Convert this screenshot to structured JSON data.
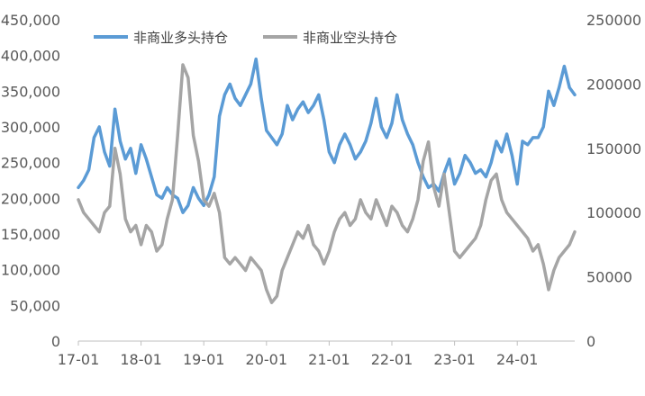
{
  "chart_data": {
    "type": "line",
    "title": "",
    "legend_position": "top-left",
    "grid": false,
    "x": {
      "ticks": [
        "17-01",
        "18-01",
        "19-01",
        "20-01",
        "21-01",
        "22-01",
        "23-01",
        "24-01"
      ],
      "range": [
        "2017-01",
        "2024-12"
      ]
    },
    "y_left": {
      "ticks": [
        "0",
        "50,000",
        "100,000",
        "150,000",
        "200,000",
        "250,000",
        "300,000",
        "350,000",
        "400,000",
        "450,000"
      ],
      "range": [
        0,
        450000
      ]
    },
    "y_right": {
      "ticks": [
        "0",
        "50000",
        "100000",
        "150000",
        "200000",
        "250000"
      ],
      "range": [
        0,
        250000
      ]
    },
    "series": [
      {
        "name": "非商业多头持仓",
        "axis": "left",
        "color": "#5B9BD5",
        "points": [
          [
            "2017-01",
            215000
          ],
          [
            "2017-02",
            225000
          ],
          [
            "2017-03",
            240000
          ],
          [
            "2017-04",
            285000
          ],
          [
            "2017-05",
            300000
          ],
          [
            "2017-06",
            265000
          ],
          [
            "2017-07",
            245000
          ],
          [
            "2017-08",
            325000
          ],
          [
            "2017-09",
            280000
          ],
          [
            "2017-10",
            255000
          ],
          [
            "2017-11",
            270000
          ],
          [
            "2017-12",
            235000
          ],
          [
            "2018-01",
            275000
          ],
          [
            "2018-02",
            255000
          ],
          [
            "2018-03",
            230000
          ],
          [
            "2018-04",
            205000
          ],
          [
            "2018-05",
            200000
          ],
          [
            "2018-06",
            215000
          ],
          [
            "2018-07",
            205000
          ],
          [
            "2018-08",
            200000
          ],
          [
            "2018-09",
            180000
          ],
          [
            "2018-10",
            190000
          ],
          [
            "2018-11",
            215000
          ],
          [
            "2018-12",
            200000
          ],
          [
            "2019-01",
            190000
          ],
          [
            "2019-02",
            205000
          ],
          [
            "2019-03",
            230000
          ],
          [
            "2019-04",
            315000
          ],
          [
            "2019-05",
            345000
          ],
          [
            "2019-06",
            360000
          ],
          [
            "2019-07",
            340000
          ],
          [
            "2019-08",
            330000
          ],
          [
            "2019-09",
            345000
          ],
          [
            "2019-10",
            360000
          ],
          [
            "2019-11",
            395000
          ],
          [
            "2019-12",
            340000
          ],
          [
            "2020-01",
            295000
          ],
          [
            "2020-02",
            285000
          ],
          [
            "2020-03",
            275000
          ],
          [
            "2020-04",
            290000
          ],
          [
            "2020-05",
            330000
          ],
          [
            "2020-06",
            310000
          ],
          [
            "2020-07",
            325000
          ],
          [
            "2020-08",
            335000
          ],
          [
            "2020-09",
            320000
          ],
          [
            "2020-10",
            330000
          ],
          [
            "2020-11",
            345000
          ],
          [
            "2020-12",
            310000
          ],
          [
            "2021-01",
            265000
          ],
          [
            "2021-02",
            250000
          ],
          [
            "2021-03",
            275000
          ],
          [
            "2021-04",
            290000
          ],
          [
            "2021-05",
            275000
          ],
          [
            "2021-06",
            255000
          ],
          [
            "2021-07",
            265000
          ],
          [
            "2021-08",
            280000
          ],
          [
            "2021-09",
            305000
          ],
          [
            "2021-10",
            340000
          ],
          [
            "2021-11",
            300000
          ],
          [
            "2021-12",
            285000
          ],
          [
            "2022-01",
            305000
          ],
          [
            "2022-02",
            345000
          ],
          [
            "2022-03",
            310000
          ],
          [
            "2022-04",
            290000
          ],
          [
            "2022-05",
            275000
          ],
          [
            "2022-06",
            250000
          ],
          [
            "2022-07",
            230000
          ],
          [
            "2022-08",
            215000
          ],
          [
            "2022-09",
            220000
          ],
          [
            "2022-10",
            210000
          ],
          [
            "2022-11",
            235000
          ],
          [
            "2022-12",
            255000
          ],
          [
            "2023-01",
            220000
          ],
          [
            "2023-02",
            235000
          ],
          [
            "2023-03",
            260000
          ],
          [
            "2023-04",
            250000
          ],
          [
            "2023-05",
            235000
          ],
          [
            "2023-06",
            240000
          ],
          [
            "2023-07",
            230000
          ],
          [
            "2023-08",
            250000
          ],
          [
            "2023-09",
            280000
          ],
          [
            "2023-10",
            265000
          ],
          [
            "2023-11",
            290000
          ],
          [
            "2023-12",
            260000
          ],
          [
            "2024-01",
            220000
          ],
          [
            "2024-02",
            280000
          ],
          [
            "2024-03",
            275000
          ],
          [
            "2024-04",
            285000
          ],
          [
            "2024-05",
            285000
          ],
          [
            "2024-06",
            300000
          ],
          [
            "2024-07",
            350000
          ],
          [
            "2024-08",
            330000
          ],
          [
            "2024-09",
            355000
          ],
          [
            "2024-10",
            385000
          ],
          [
            "2024-11",
            355000
          ],
          [
            "2024-12",
            345000
          ]
        ]
      },
      {
        "name": "非商业空头持仓",
        "axis": "right",
        "color": "#A5A5A5",
        "points": [
          [
            "2017-01",
            110000
          ],
          [
            "2017-02",
            100000
          ],
          [
            "2017-03",
            95000
          ],
          [
            "2017-04",
            90000
          ],
          [
            "2017-05",
            85000
          ],
          [
            "2017-06",
            100000
          ],
          [
            "2017-07",
            105000
          ],
          [
            "2017-08",
            150000
          ],
          [
            "2017-09",
            130000
          ],
          [
            "2017-10",
            95000
          ],
          [
            "2017-11",
            85000
          ],
          [
            "2017-12",
            90000
          ],
          [
            "2018-01",
            75000
          ],
          [
            "2018-02",
            90000
          ],
          [
            "2018-03",
            85000
          ],
          [
            "2018-04",
            70000
          ],
          [
            "2018-05",
            75000
          ],
          [
            "2018-06",
            95000
          ],
          [
            "2018-07",
            110000
          ],
          [
            "2018-08",
            160000
          ],
          [
            "2018-09",
            215000
          ],
          [
            "2018-10",
            205000
          ],
          [
            "2018-11",
            160000
          ],
          [
            "2018-12",
            140000
          ],
          [
            "2019-01",
            110000
          ],
          [
            "2019-02",
            105000
          ],
          [
            "2019-03",
            115000
          ],
          [
            "2019-04",
            100000
          ],
          [
            "2019-05",
            65000
          ],
          [
            "2019-06",
            60000
          ],
          [
            "2019-07",
            65000
          ],
          [
            "2019-08",
            60000
          ],
          [
            "2019-09",
            55000
          ],
          [
            "2019-10",
            65000
          ],
          [
            "2019-11",
            60000
          ],
          [
            "2019-12",
            55000
          ],
          [
            "2020-01",
            40000
          ],
          [
            "2020-02",
            30000
          ],
          [
            "2020-03",
            35000
          ],
          [
            "2020-04",
            55000
          ],
          [
            "2020-05",
            65000
          ],
          [
            "2020-06",
            75000
          ],
          [
            "2020-07",
            85000
          ],
          [
            "2020-08",
            80000
          ],
          [
            "2020-09",
            90000
          ],
          [
            "2020-10",
            75000
          ],
          [
            "2020-11",
            70000
          ],
          [
            "2020-12",
            60000
          ],
          [
            "2021-01",
            70000
          ],
          [
            "2021-02",
            85000
          ],
          [
            "2021-03",
            95000
          ],
          [
            "2021-04",
            100000
          ],
          [
            "2021-05",
            90000
          ],
          [
            "2021-06",
            95000
          ],
          [
            "2021-07",
            110000
          ],
          [
            "2021-08",
            100000
          ],
          [
            "2021-09",
            95000
          ],
          [
            "2021-10",
            110000
          ],
          [
            "2021-11",
            100000
          ],
          [
            "2021-12",
            90000
          ],
          [
            "2022-01",
            105000
          ],
          [
            "2022-02",
            100000
          ],
          [
            "2022-03",
            90000
          ],
          [
            "2022-04",
            85000
          ],
          [
            "2022-05",
            95000
          ],
          [
            "2022-06",
            110000
          ],
          [
            "2022-07",
            140000
          ],
          [
            "2022-08",
            155000
          ],
          [
            "2022-09",
            120000
          ],
          [
            "2022-10",
            105000
          ],
          [
            "2022-11",
            130000
          ],
          [
            "2022-12",
            100000
          ],
          [
            "2023-01",
            70000
          ],
          [
            "2023-02",
            65000
          ],
          [
            "2023-03",
            70000
          ],
          [
            "2023-04",
            75000
          ],
          [
            "2023-05",
            80000
          ],
          [
            "2023-06",
            90000
          ],
          [
            "2023-07",
            110000
          ],
          [
            "2023-08",
            125000
          ],
          [
            "2023-09",
            130000
          ],
          [
            "2023-10",
            110000
          ],
          [
            "2023-11",
            100000
          ],
          [
            "2023-12",
            95000
          ],
          [
            "2024-01",
            90000
          ],
          [
            "2024-02",
            85000
          ],
          [
            "2024-03",
            80000
          ],
          [
            "2024-04",
            70000
          ],
          [
            "2024-05",
            75000
          ],
          [
            "2024-06",
            60000
          ],
          [
            "2024-07",
            40000
          ],
          [
            "2024-08",
            55000
          ],
          [
            "2024-09",
            65000
          ],
          [
            "2024-10",
            70000
          ],
          [
            "2024-11",
            75000
          ],
          [
            "2024-12",
            85000
          ]
        ]
      }
    ]
  }
}
